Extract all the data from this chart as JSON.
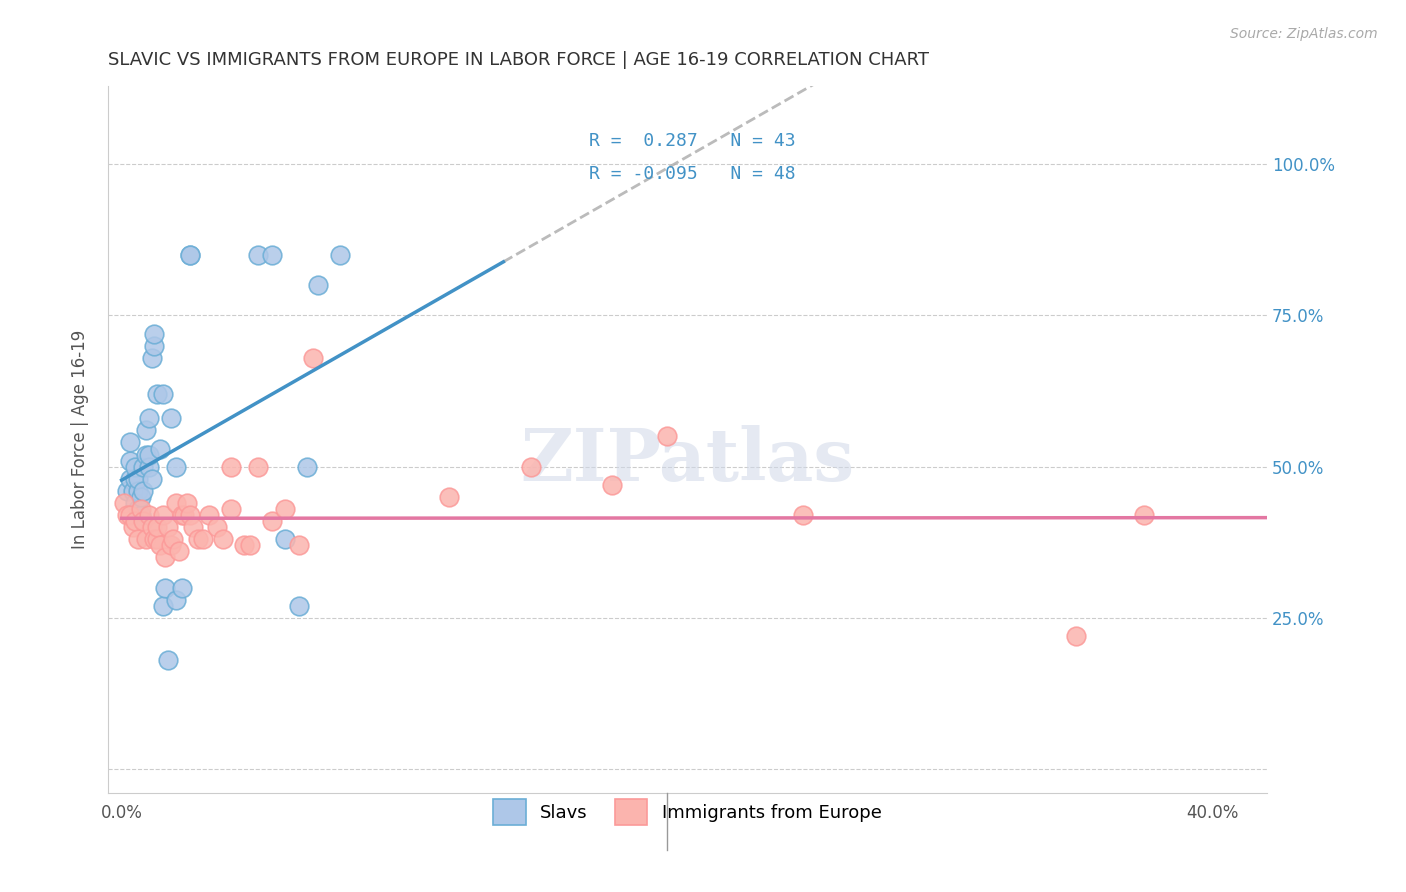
{
  "title": "SLAVIC VS IMMIGRANTS FROM EUROPE IN LABOR FORCE | AGE 16-19 CORRELATION CHART",
  "source": "Source: ZipAtlas.com",
  "xlabel_bottom": "",
  "ylabel_left": "In Labor Force | Age 16-19",
  "ylabel_right": "",
  "x_ticks": [
    0.0,
    0.05,
    0.1,
    0.15,
    0.2,
    0.25,
    0.3,
    0.35,
    0.4
  ],
  "x_tick_labels": [
    "0.0%",
    "",
    "",
    "",
    "",
    "",
    "",
    "",
    "40.0%"
  ],
  "y_ticks_right": [
    0.0,
    0.25,
    0.5,
    0.75,
    1.0
  ],
  "y_tick_labels_right": [
    "",
    "25.0%",
    "50.0%",
    "75.0%",
    "100.0%"
  ],
  "xlim": [
    -0.005,
    0.42
  ],
  "ylim": [
    -0.04,
    1.13
  ],
  "blue_r": "0.287",
  "blue_n": "43",
  "pink_r": "-0.095",
  "pink_n": "48",
  "blue_color": "#6baed6",
  "pink_color": "#fb9a99",
  "blue_face": "#aec7e8",
  "pink_face": "#fbb4ae",
  "trend_blue": "#4292c6",
  "trend_pink": "#e377a2",
  "legend_label_blue": "Slavs",
  "legend_label_pink": "Immigrants from Europe",
  "slavs_x": [
    0.002,
    0.003,
    0.003,
    0.003,
    0.004,
    0.005,
    0.005,
    0.005,
    0.006,
    0.006,
    0.006,
    0.007,
    0.007,
    0.008,
    0.008,
    0.009,
    0.009,
    0.01,
    0.01,
    0.01,
    0.011,
    0.011,
    0.012,
    0.012,
    0.013,
    0.014,
    0.015,
    0.015,
    0.016,
    0.017,
    0.018,
    0.02,
    0.02,
    0.022,
    0.025,
    0.025,
    0.05,
    0.055,
    0.06,
    0.065,
    0.068,
    0.072,
    0.08
  ],
  "slavs_y": [
    0.46,
    0.48,
    0.51,
    0.54,
    0.46,
    0.44,
    0.48,
    0.5,
    0.43,
    0.46,
    0.48,
    0.42,
    0.45,
    0.46,
    0.5,
    0.52,
    0.56,
    0.5,
    0.52,
    0.58,
    0.48,
    0.68,
    0.7,
    0.72,
    0.62,
    0.53,
    0.62,
    0.27,
    0.3,
    0.18,
    0.58,
    0.5,
    0.28,
    0.3,
    0.85,
    0.85,
    0.85,
    0.85,
    0.38,
    0.27,
    0.5,
    0.8,
    0.85
  ],
  "immigrants_x": [
    0.001,
    0.002,
    0.003,
    0.004,
    0.005,
    0.006,
    0.007,
    0.008,
    0.009,
    0.01,
    0.011,
    0.012,
    0.013,
    0.013,
    0.014,
    0.015,
    0.016,
    0.017,
    0.018,
    0.019,
    0.02,
    0.021,
    0.022,
    0.023,
    0.024,
    0.025,
    0.026,
    0.028,
    0.03,
    0.032,
    0.035,
    0.037,
    0.04,
    0.04,
    0.045,
    0.047,
    0.05,
    0.055,
    0.06,
    0.065,
    0.07,
    0.12,
    0.15,
    0.18,
    0.2,
    0.25,
    0.35,
    0.375
  ],
  "immigrants_y": [
    0.44,
    0.42,
    0.42,
    0.4,
    0.41,
    0.38,
    0.43,
    0.41,
    0.38,
    0.42,
    0.4,
    0.38,
    0.38,
    0.4,
    0.37,
    0.42,
    0.35,
    0.4,
    0.37,
    0.38,
    0.44,
    0.36,
    0.42,
    0.42,
    0.44,
    0.42,
    0.4,
    0.38,
    0.38,
    0.42,
    0.4,
    0.38,
    0.43,
    0.5,
    0.37,
    0.37,
    0.5,
    0.41,
    0.43,
    0.37,
    0.68,
    0.45,
    0.5,
    0.47,
    0.55,
    0.42,
    0.22,
    0.42
  ],
  "background_color": "#ffffff",
  "grid_color": "#cccccc",
  "title_color": "#333333",
  "axis_label_color": "#555555",
  "right_tick_color": "#4292c6",
  "source_color": "#aaaaaa"
}
